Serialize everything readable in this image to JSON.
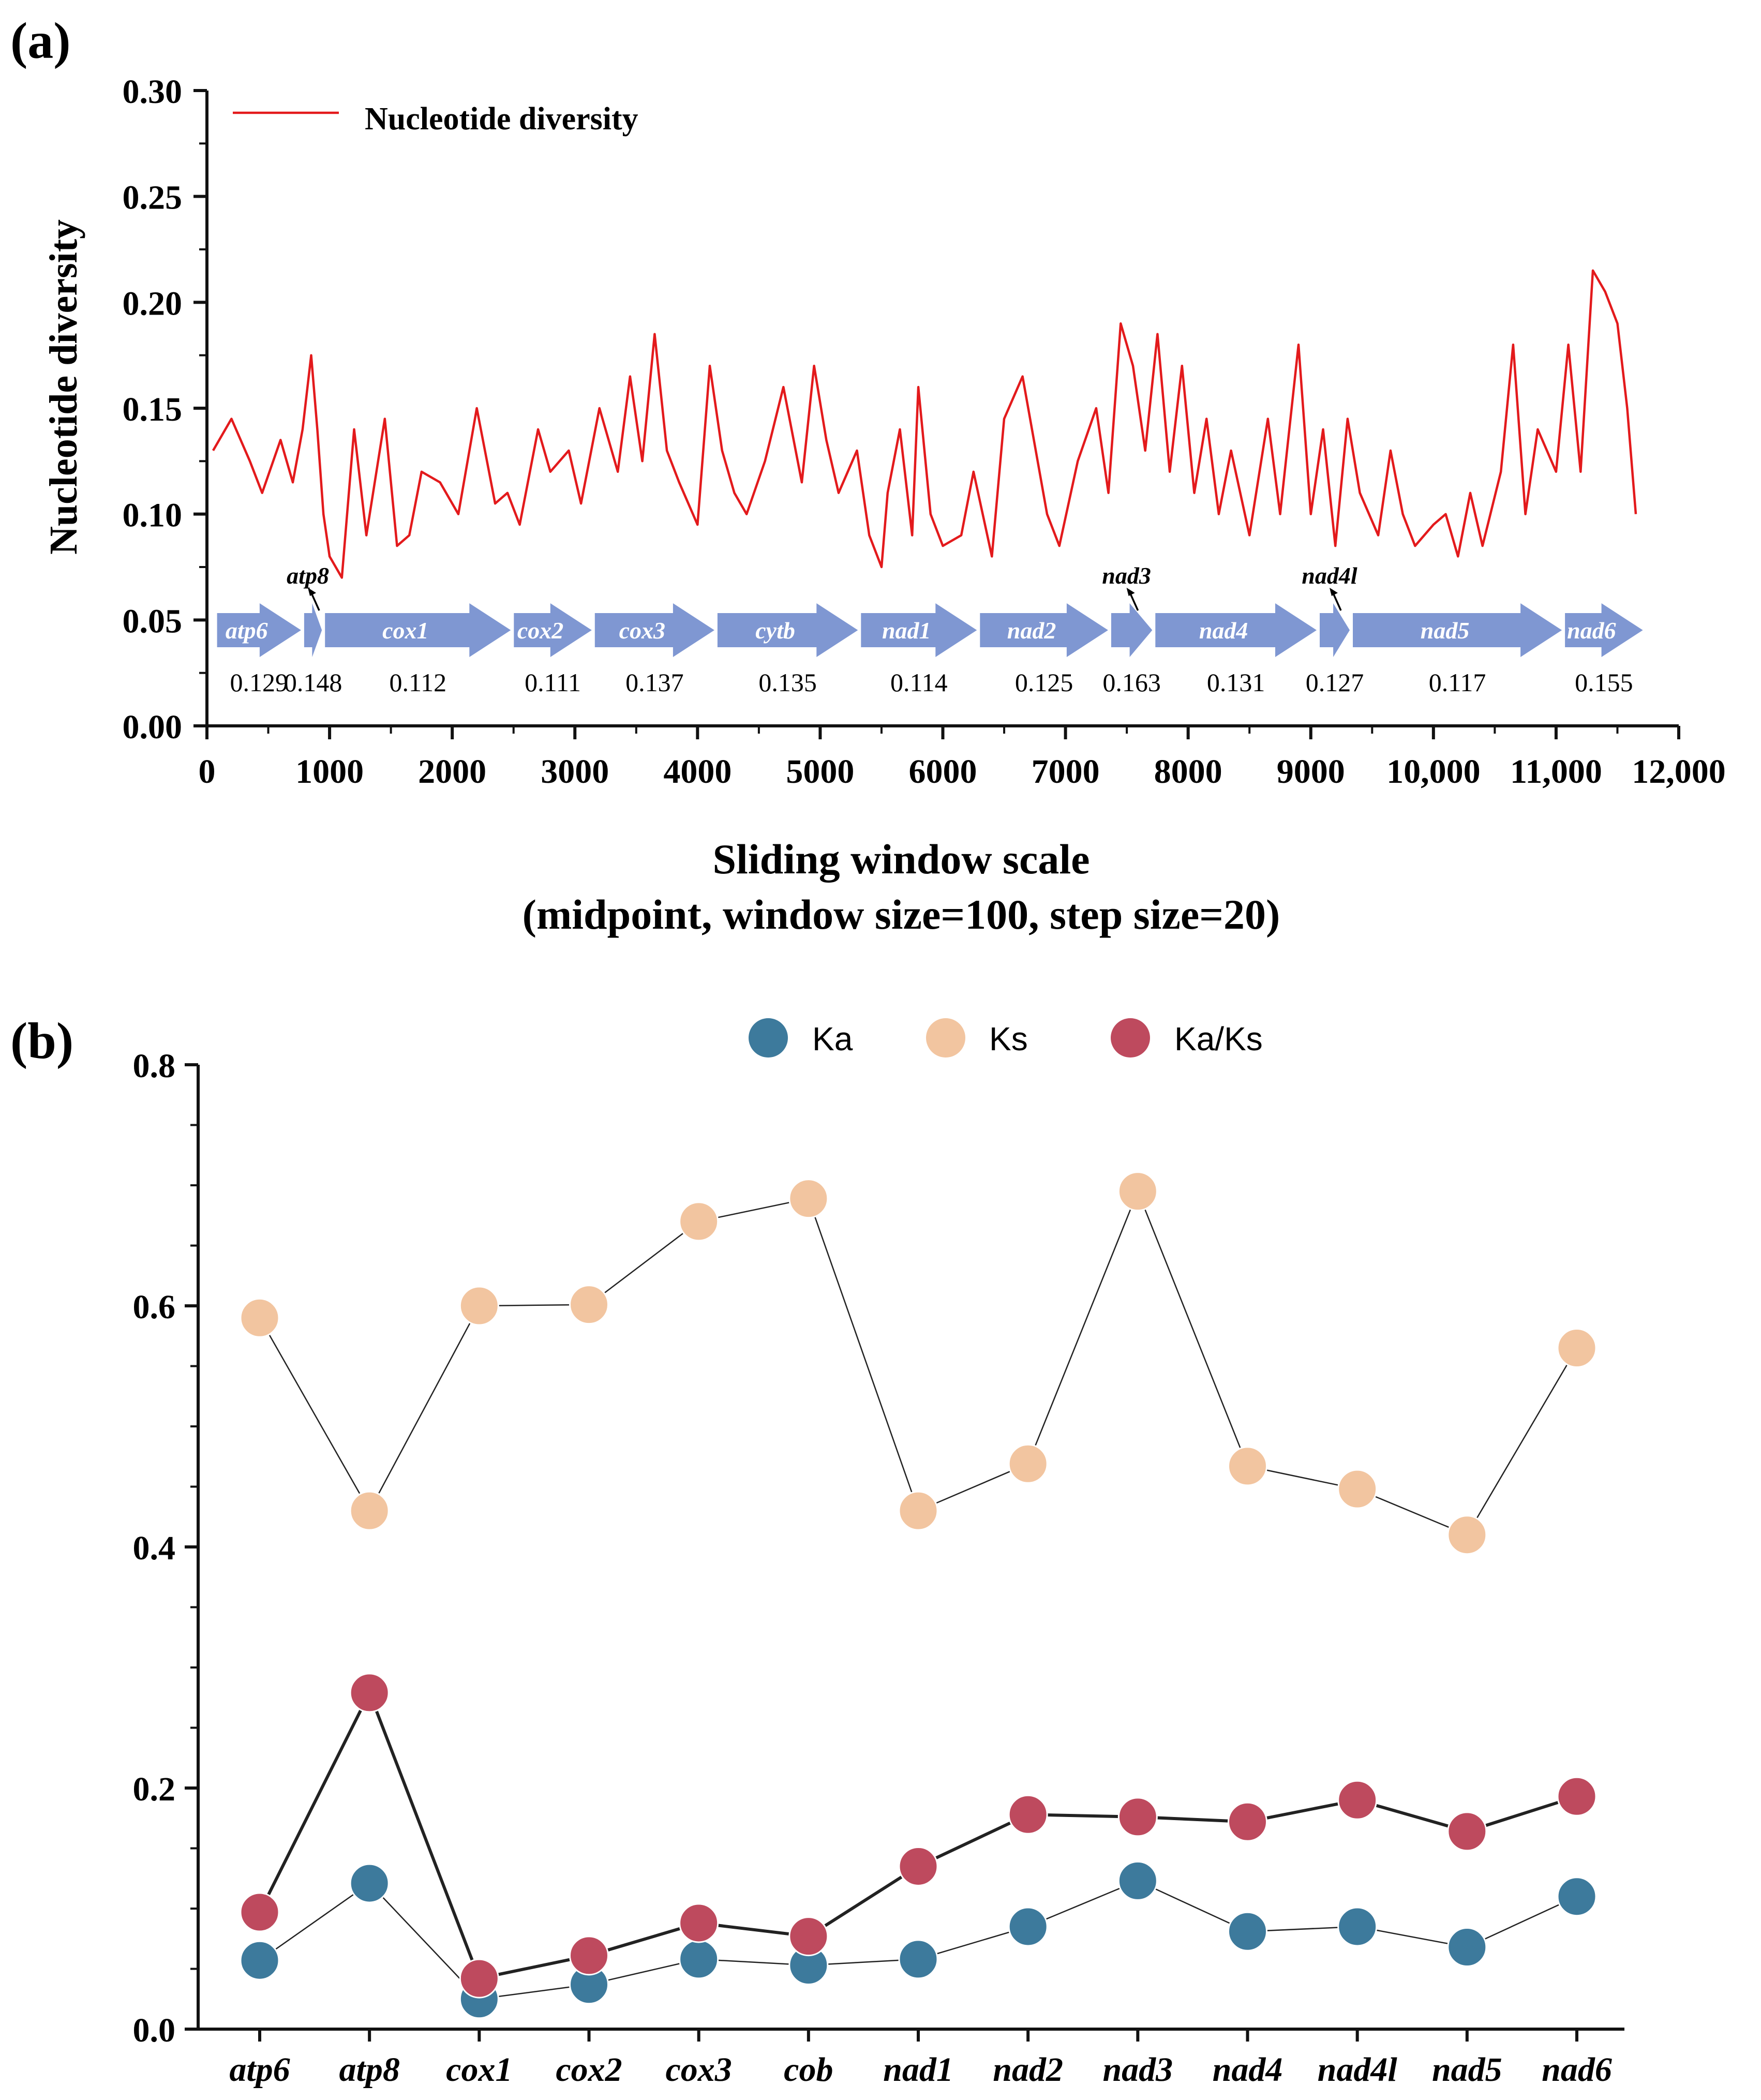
{
  "colors": {
    "line": "#e31a1c",
    "arrow": "#7f97d2",
    "ka": "#3d7a9c",
    "ks": "#f2c5a0",
    "kaks": "#be4a5e"
  },
  "panel_a": {
    "label": "(a)"
  },
  "panel_b": {
    "label": "(b)"
  },
  "chart_data": [
    {
      "type": "line",
      "title": "",
      "xlabel": "Sliding window scale",
      "xlabel2": "(midpoint, window size=100, step size=20)",
      "ylabel": "Nucleotide diversity",
      "xlim": [
        0,
        12000
      ],
      "ylim": [
        0,
        0.3
      ],
      "xticks": [
        0,
        1000,
        2000,
        3000,
        4000,
        5000,
        6000,
        7000,
        8000,
        9000,
        10000,
        11000,
        12000
      ],
      "xtick_labels": [
        "0",
        "1000",
        "2000",
        "3000",
        "4000",
        "5000",
        "6000",
        "7000",
        "8000",
        "9000",
        "10,000",
        "11,000",
        "12,000"
      ],
      "yticks": [
        0,
        0.05,
        0.1,
        0.15,
        0.2,
        0.25,
        0.3
      ],
      "ytick_labels": [
        "0.00",
        "0.05",
        "0.10",
        "0.15",
        "0.20",
        "0.25",
        "0.30"
      ],
      "legend": [
        "Nucleotide diversity"
      ],
      "legend_position": "top-left",
      "series": [
        {
          "name": "Nucleotide diversity",
          "x": [
            50,
            200,
            350,
            450,
            600,
            700,
            780,
            850,
            900,
            950,
            1000,
            1100,
            1200,
            1300,
            1450,
            1550,
            1650,
            1750,
            1900,
            2050,
            2200,
            2350,
            2450,
            2550,
            2700,
            2800,
            2950,
            3050,
            3200,
            3350,
            3450,
            3550,
            3650,
            3750,
            3850,
            4000,
            4100,
            4200,
            4300,
            4400,
            4550,
            4700,
            4850,
            4950,
            5050,
            5150,
            5300,
            5400,
            5500,
            5550,
            5650,
            5750,
            5800,
            5900,
            6000,
            6150,
            6250,
            6400,
            6500,
            6650,
            6850,
            6950,
            7100,
            7250,
            7350,
            7450,
            7550,
            7650,
            7750,
            7850,
            7950,
            8050,
            8150,
            8250,
            8350,
            8500,
            8650,
            8750,
            8900,
            9000,
            9100,
            9200,
            9300,
            9400,
            9550,
            9650,
            9750,
            9850,
            10000,
            10100,
            10200,
            10300,
            10400,
            10550,
            10650,
            10750,
            10850,
            11000,
            11100,
            11200,
            11300,
            11400,
            11500,
            11580,
            11650
          ],
          "values": [
            0.13,
            0.145,
            0.125,
            0.11,
            0.135,
            0.115,
            0.14,
            0.175,
            0.14,
            0.1,
            0.08,
            0.07,
            0.14,
            0.09,
            0.145,
            0.085,
            0.09,
            0.12,
            0.115,
            0.1,
            0.15,
            0.105,
            0.11,
            0.095,
            0.14,
            0.12,
            0.13,
            0.105,
            0.15,
            0.12,
            0.165,
            0.125,
            0.185,
            0.13,
            0.115,
            0.095,
            0.17,
            0.13,
            0.11,
            0.1,
            0.125,
            0.16,
            0.115,
            0.17,
            0.135,
            0.11,
            0.13,
            0.09,
            0.075,
            0.11,
            0.14,
            0.09,
            0.16,
            0.1,
            0.085,
            0.09,
            0.12,
            0.08,
            0.145,
            0.165,
            0.1,
            0.085,
            0.125,
            0.15,
            0.11,
            0.19,
            0.17,
            0.13,
            0.185,
            0.12,
            0.17,
            0.11,
            0.145,
            0.1,
            0.13,
            0.09,
            0.145,
            0.1,
            0.18,
            0.1,
            0.14,
            0.085,
            0.145,
            0.11,
            0.09,
            0.13,
            0.1,
            0.085,
            0.095,
            0.1,
            0.08,
            0.11,
            0.085,
            0.12,
            0.18,
            0.1,
            0.14,
            0.12,
            0.18,
            0.12,
            0.215,
            0.205,
            0.19,
            0.15,
            0.1
          ]
        }
      ],
      "genes": [
        {
          "name": "atp6",
          "start": 70,
          "end": 780,
          "pi": "0.129",
          "label_above": false
        },
        {
          "name": "atp8",
          "start": 780,
          "end": 950,
          "pi": "0.148",
          "label_above": true
        },
        {
          "name": "cox1",
          "start": 950,
          "end": 2490,
          "pi": "0.112",
          "label_above": false
        },
        {
          "name": "cox2",
          "start": 2490,
          "end": 3150,
          "pi": "0.111",
          "label_above": false
        },
        {
          "name": "cox3",
          "start": 3150,
          "end": 4150,
          "pi": "0.137",
          "label_above": false
        },
        {
          "name": "cytb",
          "start": 4150,
          "end": 5320,
          "pi": "0.135",
          "label_above": false
        },
        {
          "name": "nad1",
          "start": 5320,
          "end": 6290,
          "pi": "0.114",
          "label_above": false
        },
        {
          "name": "nad2",
          "start": 6290,
          "end": 7360,
          "pi": "0.125",
          "label_above": false
        },
        {
          "name": "nad3",
          "start": 7360,
          "end": 7720,
          "pi": "0.163",
          "label_above": true
        },
        {
          "name": "nad4",
          "start": 7720,
          "end": 9060,
          "pi": "0.131",
          "label_above": false
        },
        {
          "name": "nad4l",
          "start": 9060,
          "end": 9330,
          "pi": "0.127",
          "label_above": true
        },
        {
          "name": "nad5",
          "start": 9330,
          "end": 11060,
          "pi": "0.117",
          "label_above": false
        },
        {
          "name": "nad6",
          "start": 11060,
          "end": 11720,
          "pi": "0.155",
          "label_above": false
        }
      ]
    },
    {
      "type": "scatter",
      "title": "",
      "xlabel": "",
      "ylabel": "",
      "ylim": [
        0,
        0.8
      ],
      "yticks": [
        0,
        0.2,
        0.4,
        0.6,
        0.8
      ],
      "ytick_labels": [
        "0.0",
        "0.2",
        "0.4",
        "0.6",
        "0.8"
      ],
      "legend_position": "top-center",
      "categories": [
        "atp6",
        "atp8",
        "cox1",
        "cox2",
        "cox3",
        "cob",
        "nad1",
        "nad2",
        "nad3",
        "nad4",
        "nad4l",
        "nad5",
        "nad6"
      ],
      "series": [
        {
          "name": "Ka",
          "values": [
            0.057,
            0.121,
            0.025,
            0.037,
            0.058,
            0.053,
            0.058,
            0.085,
            0.123,
            0.081,
            0.085,
            0.068,
            0.11
          ]
        },
        {
          "name": "Ks",
          "values": [
            0.59,
            0.43,
            0.6,
            0.601,
            0.67,
            0.689,
            0.43,
            0.469,
            0.695,
            0.467,
            0.448,
            0.41,
            0.565
          ]
        },
        {
          "name": "Ka/Ks",
          "values": [
            0.097,
            0.279,
            0.042,
            0.061,
            0.088,
            0.077,
            0.135,
            0.178,
            0.176,
            0.172,
            0.19,
            0.164,
            0.193
          ]
        }
      ]
    }
  ]
}
